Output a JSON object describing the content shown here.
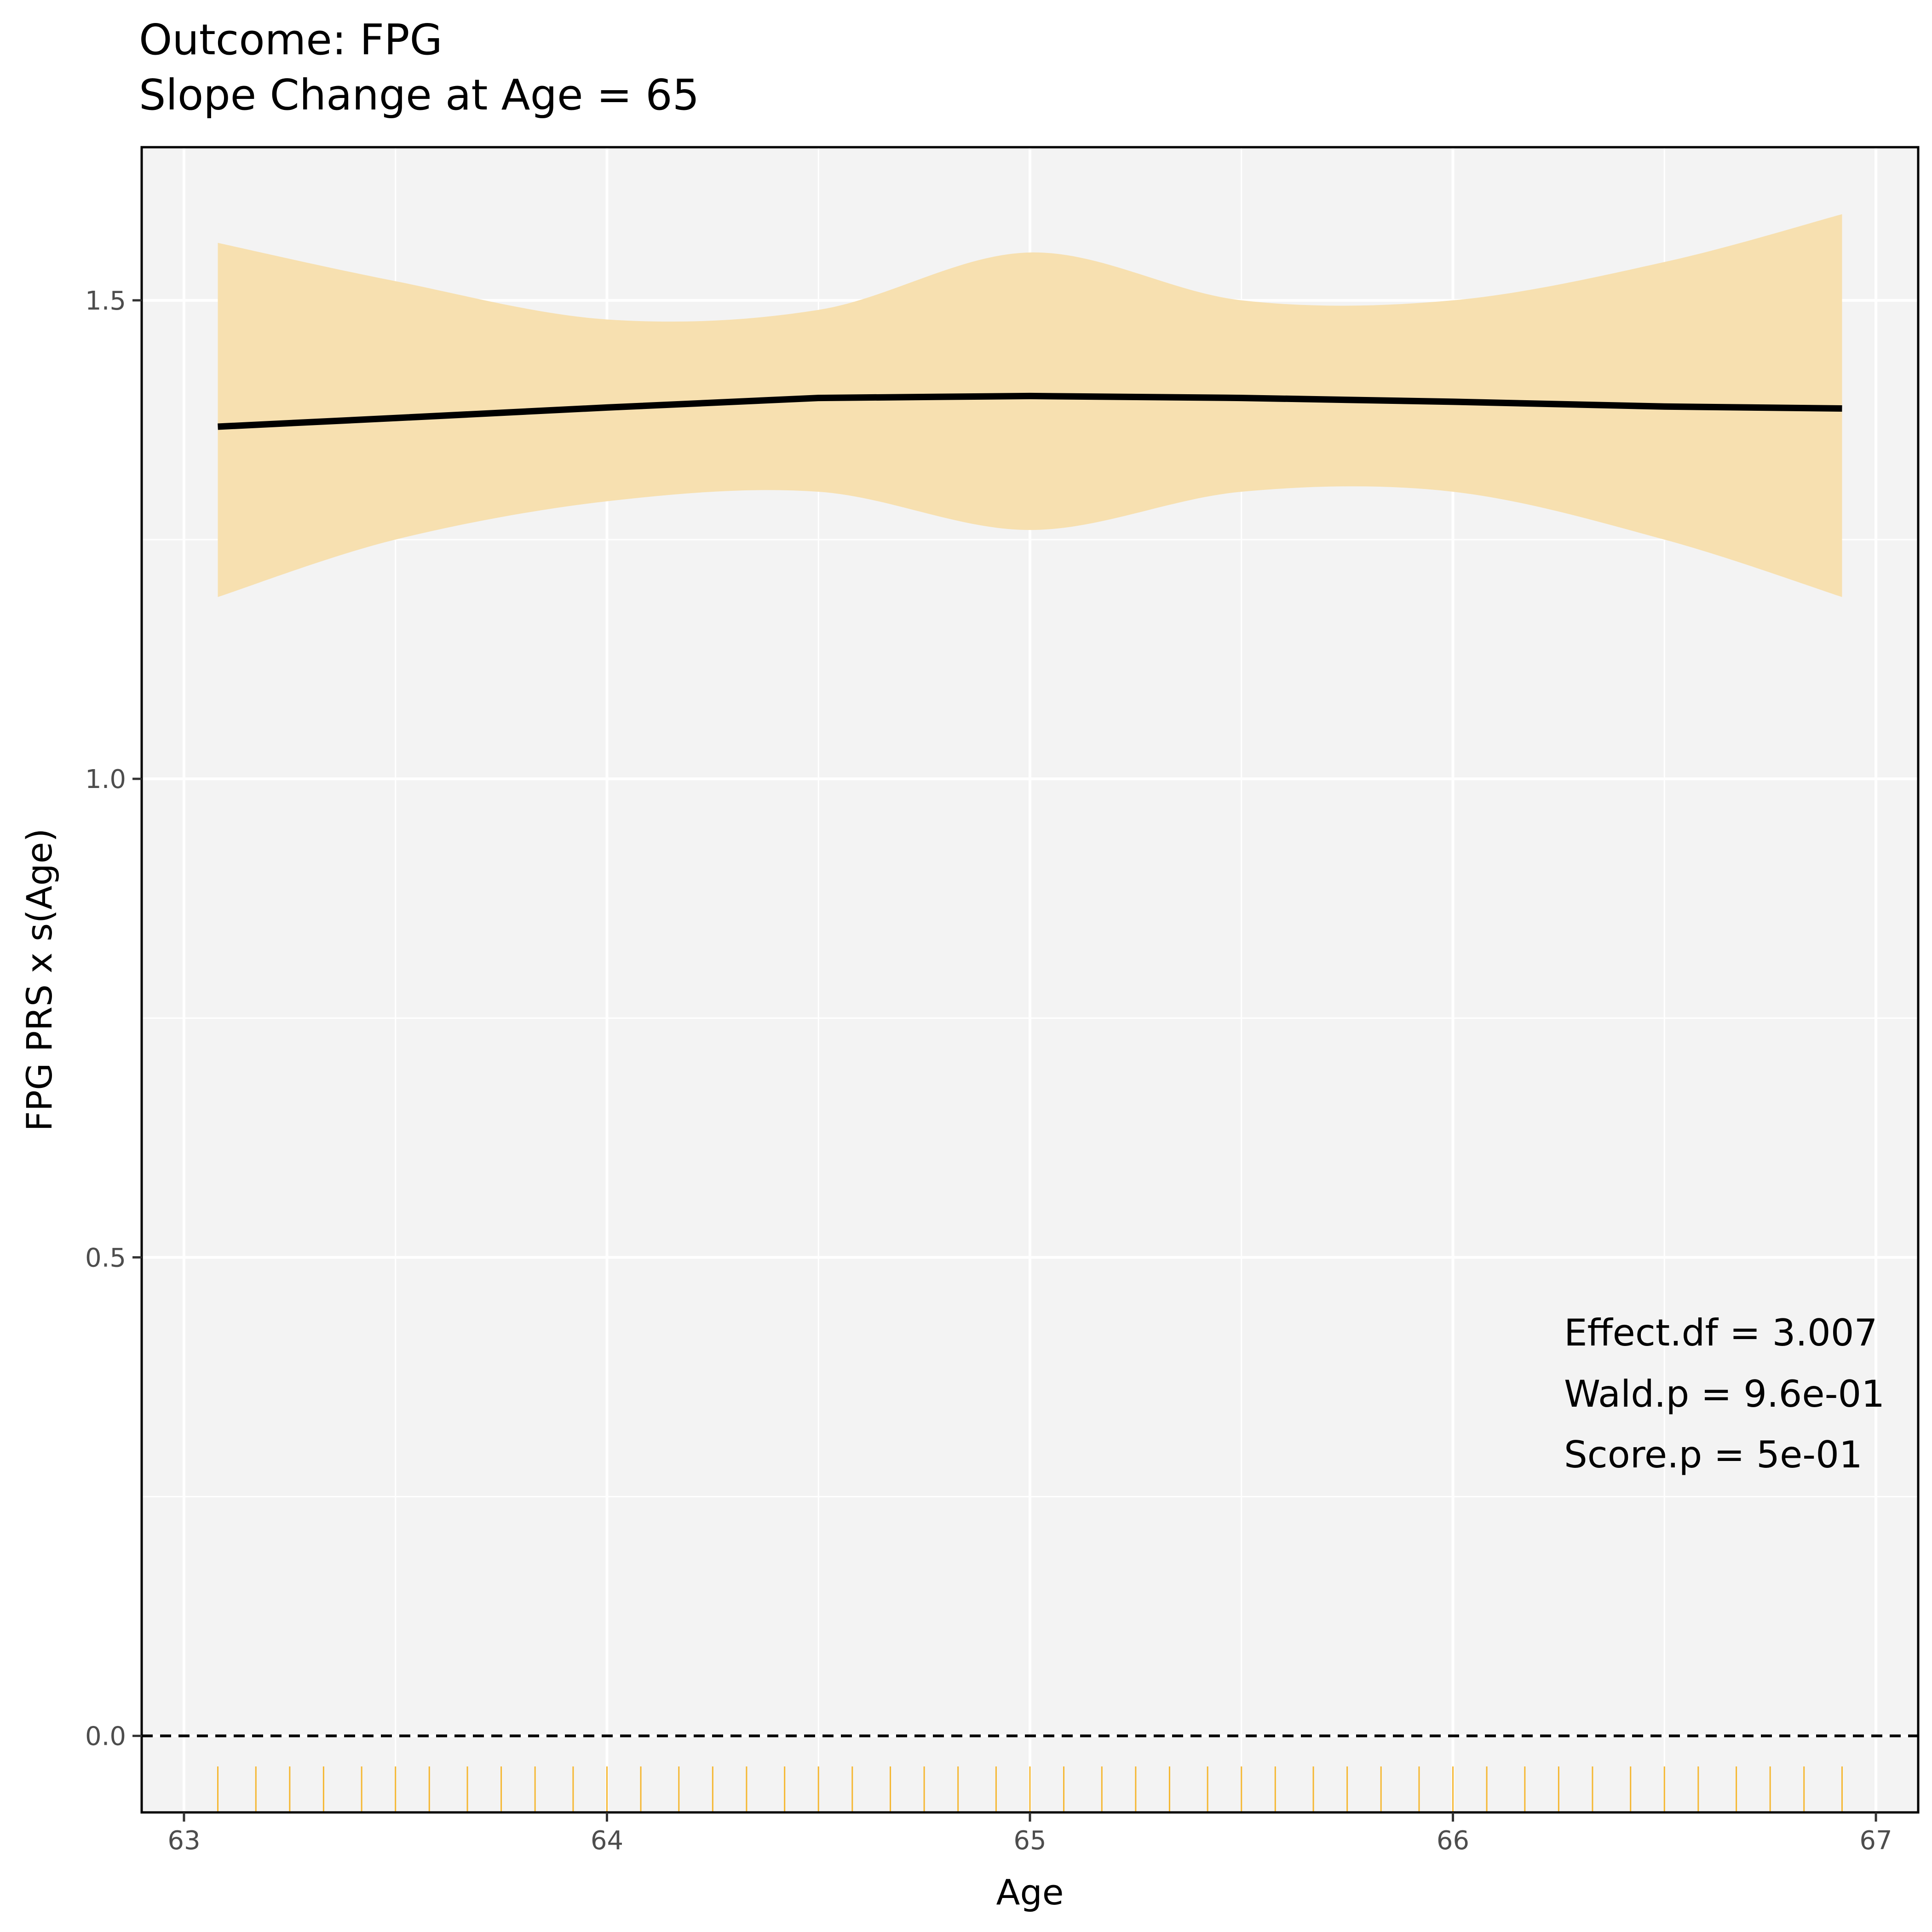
{
  "chart_data": {
    "type": "line",
    "title": "Outcome: FPG",
    "subtitle": "Slope Change at Age = 65",
    "xlabel": "Age",
    "ylabel": "FPG PRS x s(Age)",
    "xlim": [
      62.9,
      67.1
    ],
    "ylim": [
      -0.08,
      1.66
    ],
    "x_ticks": [
      63,
      64,
      65,
      66,
      67
    ],
    "x_tick_labels": [
      "63",
      "64",
      "65",
      "66",
      "67"
    ],
    "y_ticks": [
      0.0,
      0.5,
      1.0,
      1.5
    ],
    "y_tick_labels": [
      "0.0",
      "0.5",
      "1.0",
      "1.5"
    ],
    "grid": true,
    "reference_line": {
      "y": 0,
      "style": "dashed"
    },
    "series": [
      {
        "x": [
          63.08,
          63.5,
          64.0,
          64.5,
          65.0,
          65.5,
          66.0,
          66.5,
          66.92
        ],
        "y": [
          1.368,
          1.377,
          1.388,
          1.398,
          1.4,
          1.398,
          1.394,
          1.389,
          1.387
        ],
        "lower": [
          1.19,
          1.25,
          1.29,
          1.3,
          1.26,
          1.3,
          1.3,
          1.25,
          1.19
        ],
        "upper": [
          1.56,
          1.52,
          1.48,
          1.49,
          1.55,
          1.5,
          1.5,
          1.54,
          1.59
        ]
      }
    ],
    "rug_x": [
      63.08,
      63.17,
      63.25,
      63.33,
      63.42,
      63.5,
      63.58,
      63.67,
      63.75,
      63.83,
      63.92,
      64.0,
      64.08,
      64.17,
      64.25,
      64.33,
      64.42,
      64.5,
      64.58,
      64.67,
      64.75,
      64.83,
      64.92,
      65.0,
      65.08,
      65.17,
      65.25,
      65.33,
      65.42,
      65.5,
      65.58,
      65.67,
      65.75,
      65.83,
      65.92,
      66.0,
      66.08,
      66.17,
      66.25,
      66.33,
      66.42,
      66.5,
      66.58,
      66.67,
      66.75,
      66.83,
      66.92
    ],
    "annotations": [
      "Effect.df = 3.007",
      "Wald.p = 9.6e-01",
      "Score.p = 5e-01"
    ],
    "colors": {
      "panel_bg": "#f3f3f3",
      "grid": "#ffffff",
      "ribbon": "#f7e0b0",
      "line": "#000000",
      "rug": "#f5b731",
      "ref_line": "#000000"
    }
  }
}
